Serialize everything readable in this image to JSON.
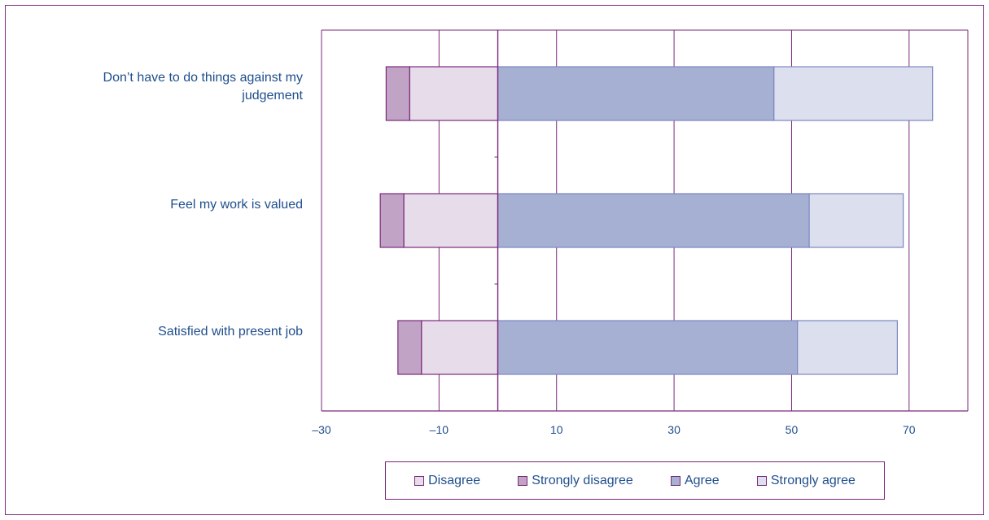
{
  "chart_data": {
    "type": "bar",
    "orientation": "horizontal",
    "stacked": "diverging",
    "categories": [
      "Don’t have to do things against my judgement",
      "Feel my work is valued",
      "Satisfied with present job"
    ],
    "series": [
      {
        "name": "Disagree",
        "values": [
          -15,
          -16,
          -13
        ],
        "color": "#e6dcea"
      },
      {
        "name": "Strongly disagree",
        "values": [
          -4,
          -4,
          -4
        ],
        "color": "#c1a3c6"
      },
      {
        "name": "Agree",
        "values": [
          47,
          53,
          51
        ],
        "color": "#a6b0d3"
      },
      {
        "name": "Strongly agree",
        "values": [
          27,
          16,
          17
        ],
        "color": "#dcdfee"
      }
    ],
    "xlim": [
      -30,
      80
    ],
    "xticks": [
      "–30",
      "–10",
      "10",
      "30",
      "50",
      "70"
    ],
    "xtick_values": [
      -30,
      -10,
      10,
      30,
      50,
      70
    ],
    "grid": true,
    "legend_position": "bottom",
    "title": "",
    "xlabel": "",
    "ylabel": ""
  },
  "legend": {
    "items": [
      "Disagree",
      "Strongly disagree",
      "Agree",
      "Strongly agree"
    ]
  }
}
